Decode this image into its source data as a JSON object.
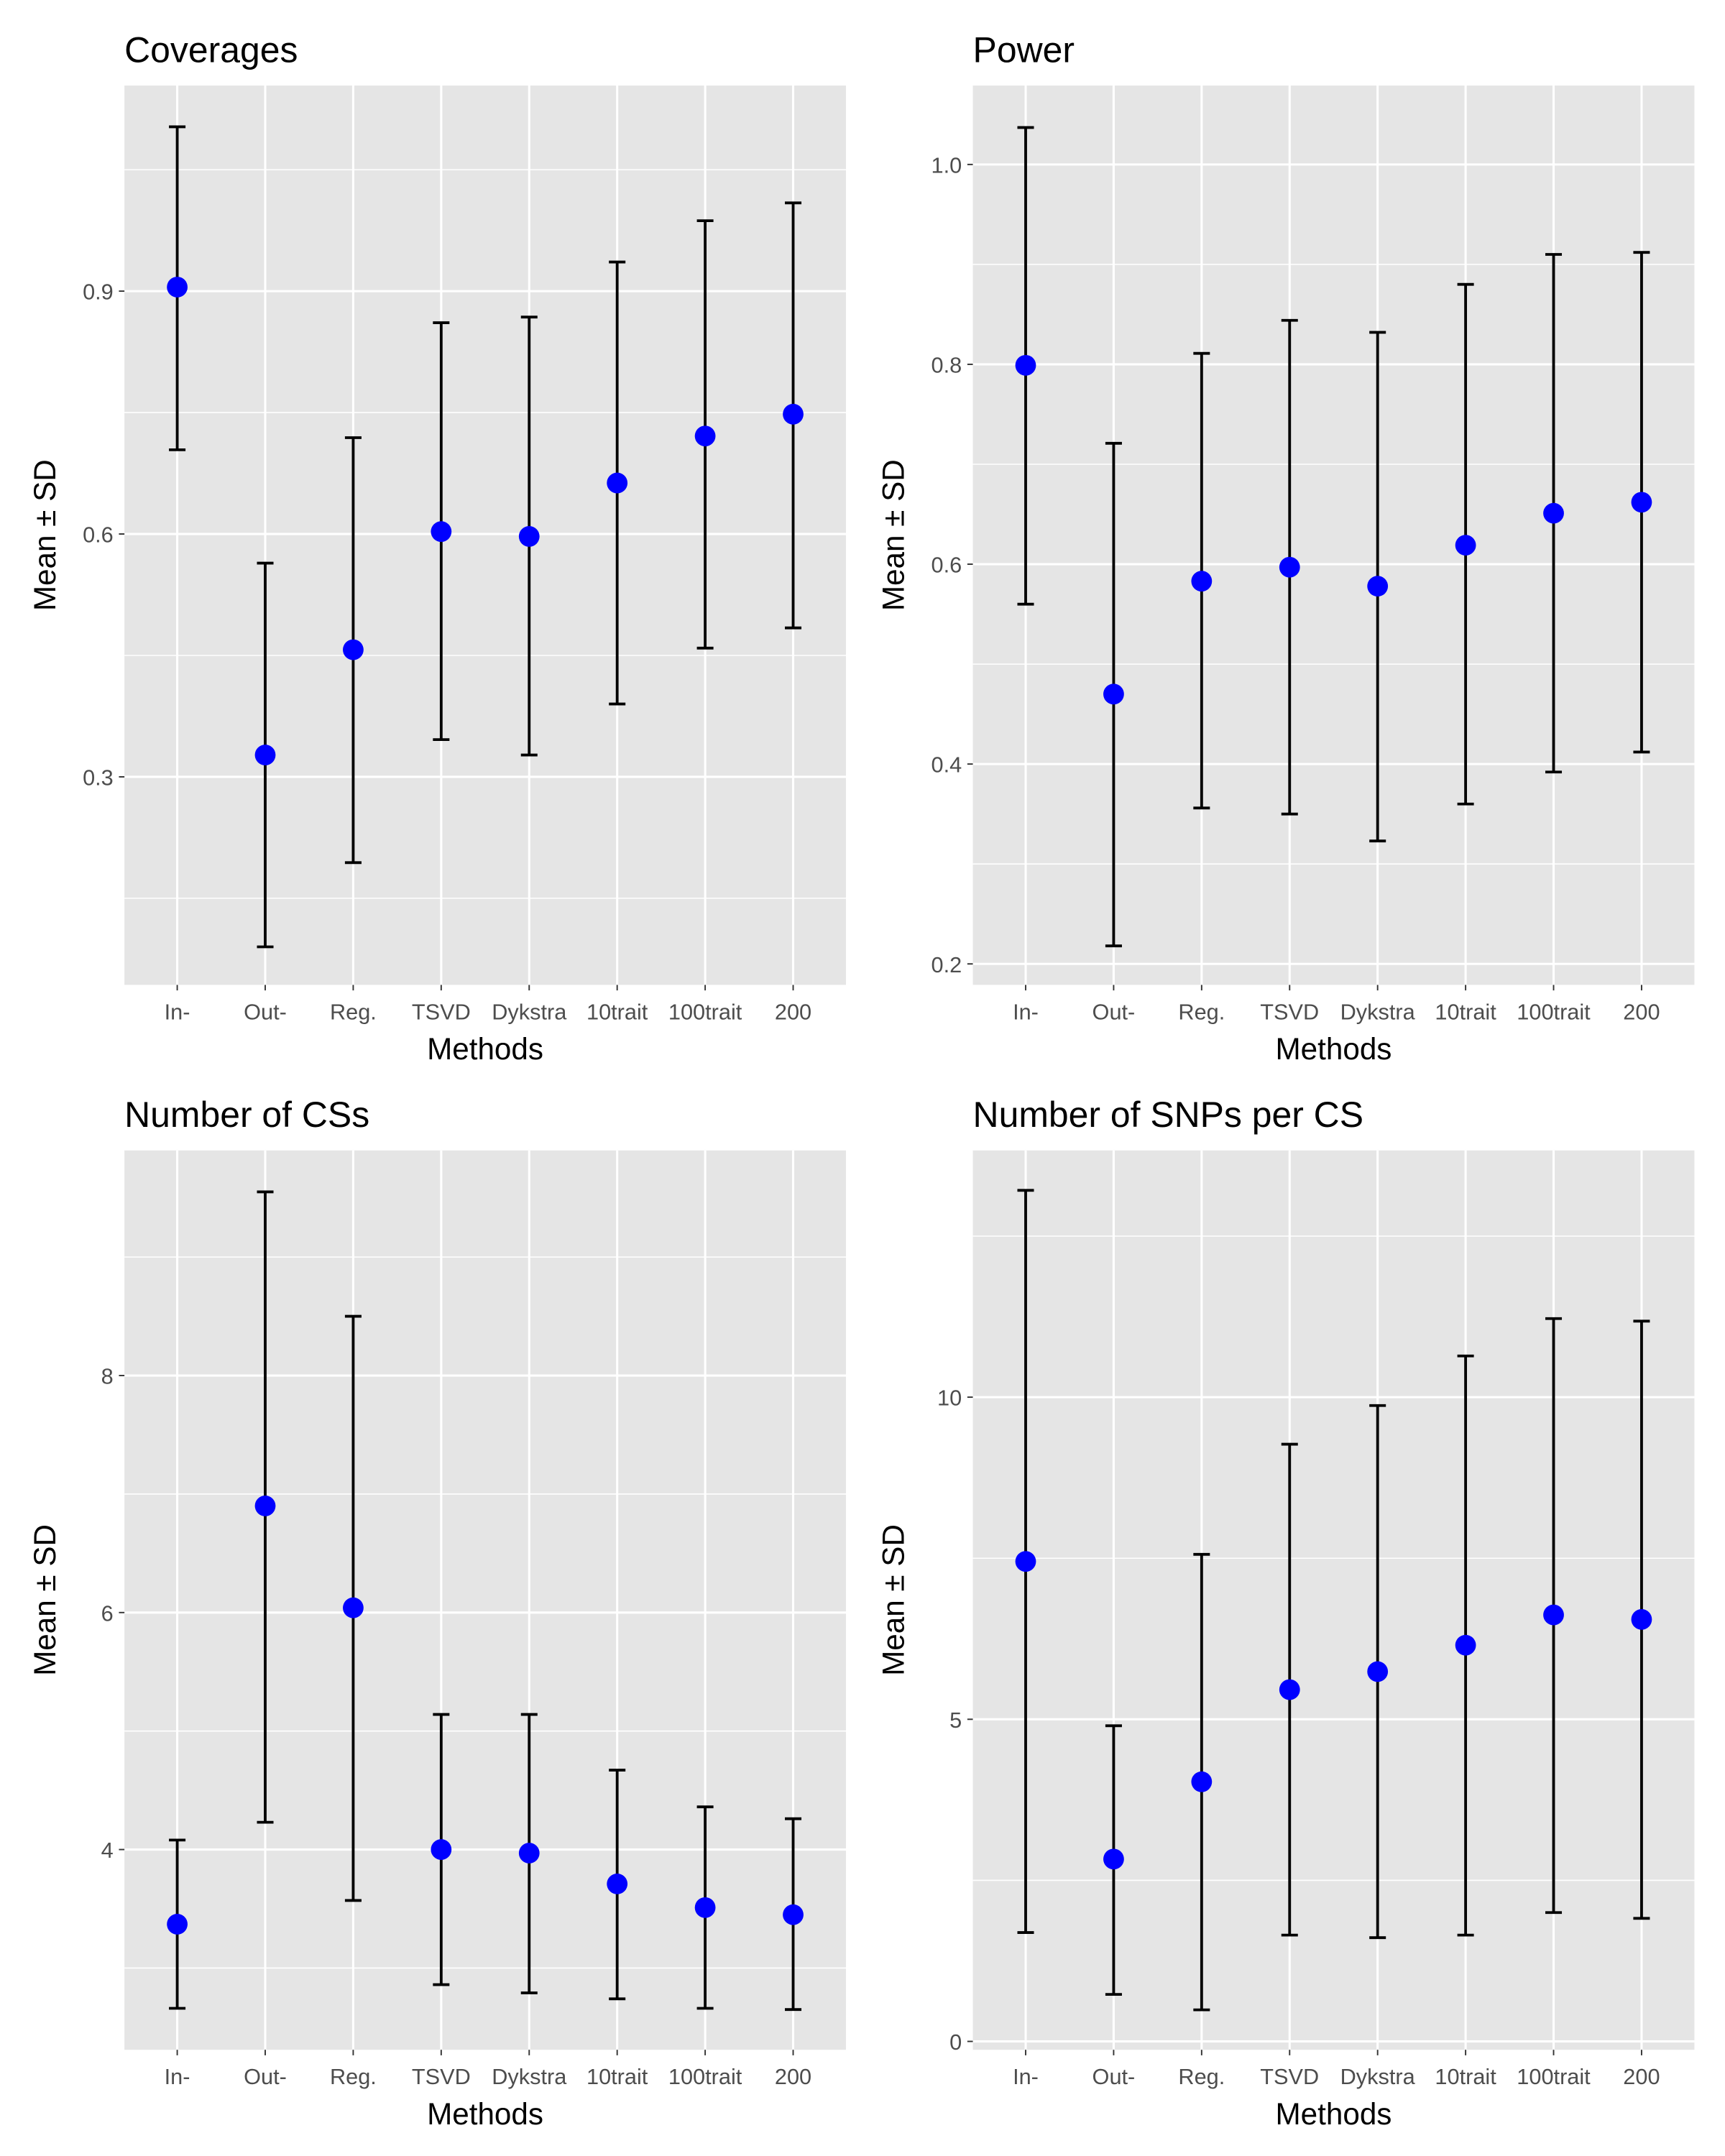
{
  "colors": {
    "panel_bg": "#e5e5e5",
    "grid": "#ffffff",
    "point": "#0000ff",
    "errorbar": "#000000"
  },
  "chart_data": [
    {
      "type": "scatter",
      "title": "Coverages",
      "xlabel": "Methods",
      "ylabel": "Mean ± SD",
      "categories": [
        "In-",
        "Out-",
        "Reg.",
        "TSVD",
        "Dykstra",
        "10trait",
        "100trait",
        "200"
      ],
      "mean": [
        0.905,
        0.327,
        0.457,
        0.603,
        0.597,
        0.663,
        0.721,
        0.748
      ],
      "upper": [
        1.103,
        0.564,
        0.719,
        0.861,
        0.868,
        0.936,
        0.987,
        1.009
      ],
      "lower": [
        0.704,
        0.09,
        0.194,
        0.346,
        0.327,
        0.39,
        0.459,
        0.484
      ],
      "ylim": [
        0.043,
        1.154
      ],
      "yticks": [
        0.3,
        0.6,
        0.9
      ],
      "ytick_labels": [
        "0.3",
        "0.6",
        "0.9"
      ],
      "yminor": [
        0.15,
        0.45,
        0.75,
        1.05
      ],
      "grid": true,
      "error_bars": "mean ± SD"
    },
    {
      "type": "scatter",
      "title": "Power",
      "xlabel": "Methods",
      "ylabel": "Mean ± SD",
      "categories": [
        "In-",
        "Out-",
        "Reg.",
        "TSVD",
        "Dykstra",
        "10trait",
        "100trait",
        "200"
      ],
      "mean": [
        0.799,
        0.47,
        0.583,
        0.597,
        0.578,
        0.619,
        0.651,
        0.662
      ],
      "upper": [
        1.037,
        0.721,
        0.811,
        0.844,
        0.832,
        0.88,
        0.91,
        0.912
      ],
      "lower": [
        0.56,
        0.218,
        0.356,
        0.35,
        0.323,
        0.36,
        0.392,
        0.412
      ],
      "ylim": [
        0.179,
        1.079
      ],
      "yticks": [
        0.2,
        0.4,
        0.6,
        0.8,
        1.0
      ],
      "ytick_labels": [
        "0.2",
        "0.4",
        "0.6",
        "0.8",
        "1.0"
      ],
      "yminor": [
        0.3,
        0.5,
        0.7,
        0.9
      ],
      "grid": true,
      "error_bars": "mean ± SD"
    },
    {
      "type": "scatter",
      "title": "Number of CSs",
      "xlabel": "Methods",
      "ylabel": "Mean ± SD",
      "categories": [
        "In-",
        "Out-",
        "Reg.",
        "TSVD",
        "Dykstra",
        "10trait",
        "100trait",
        "200"
      ],
      "mean": [
        3.37,
        6.9,
        6.04,
        4.0,
        3.97,
        3.71,
        3.51,
        3.45
      ],
      "upper": [
        4.08,
        9.55,
        8.5,
        5.14,
        5.14,
        4.67,
        4.36,
        4.26
      ],
      "lower": [
        2.66,
        4.23,
        3.57,
        2.86,
        2.79,
        2.74,
        2.66,
        2.65
      ],
      "ylim": [
        2.31,
        9.9
      ],
      "yticks": [
        4,
        6,
        8
      ],
      "ytick_labels": [
        "4",
        "6",
        "8"
      ],
      "yminor": [
        3,
        5,
        7,
        9
      ],
      "grid": true,
      "error_bars": "mean ± SD"
    },
    {
      "type": "scatter",
      "title": "Number of SNPs per CS",
      "xlabel": "Methods",
      "ylabel": "Mean ± SD",
      "categories": [
        "In-",
        "Out-",
        "Reg.",
        "TSVD",
        "Dykstra",
        "10trait",
        "100trait",
        "200"
      ],
      "mean": [
        7.45,
        2.83,
        4.03,
        5.46,
        5.74,
        6.15,
        6.62,
        6.55
      ],
      "upper": [
        13.21,
        4.9,
        7.56,
        9.27,
        9.87,
        10.64,
        11.22,
        11.18
      ],
      "lower": [
        1.69,
        0.73,
        0.49,
        1.65,
        1.61,
        1.65,
        2.0,
        1.91
      ],
      "ylim": [
        -0.13,
        13.83
      ],
      "yticks": [
        0,
        5,
        10
      ],
      "ytick_labels": [
        "0",
        "5",
        "10"
      ],
      "yminor": [
        2.5,
        7.5,
        12.5
      ],
      "grid": true,
      "error_bars": "mean ± SD"
    }
  ]
}
